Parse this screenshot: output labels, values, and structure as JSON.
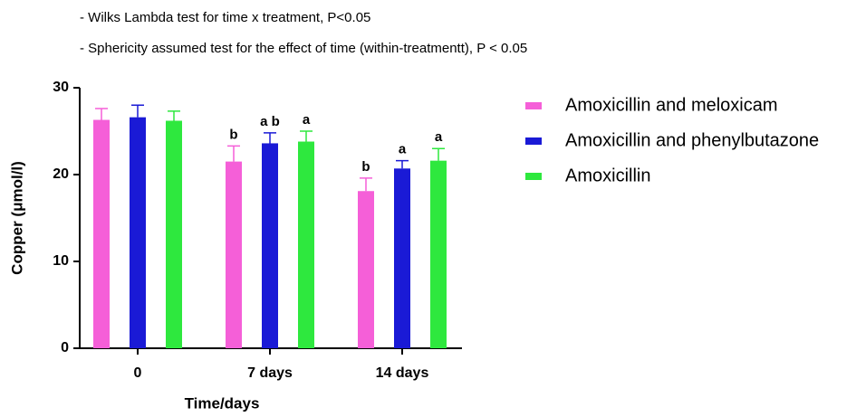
{
  "chart_data": {
    "type": "bar",
    "notes": [
      "- Wilks Lambda test for time x treatment, P<0.05",
      "- Sphericity assumed test for the effect of time (within-treatmentt), P < 0.05"
    ],
    "ylabel": "Copper (μmol/l)",
    "xlabel": "Time/days",
    "categories": [
      "0",
      "7 days",
      "14 days"
    ],
    "series": [
      {
        "name": "Amoxicillin and meloxicam",
        "color": "#f55fd8",
        "values": [
          26.3,
          21.5,
          18.1
        ],
        "errors": [
          1.3,
          1.8,
          1.5
        ],
        "annotations": [
          null,
          "b",
          "b"
        ]
      },
      {
        "name": "Amoxicillin and phenylbutazone",
        "color": "#1a1ad6",
        "values": [
          26.6,
          23.6,
          20.7
        ],
        "errors": [
          1.4,
          1.2,
          0.9
        ],
        "annotations": [
          null,
          "a b",
          "a"
        ]
      },
      {
        "name": "Amoxicillin",
        "color": "#2ee83e",
        "values": [
          26.2,
          23.8,
          21.6
        ],
        "errors": [
          1.1,
          1.2,
          1.4
        ],
        "annotations": [
          null,
          "a",
          "a"
        ]
      }
    ],
    "ylim": [
      0,
      30
    ],
    "yticks": [
      0,
      10,
      20,
      30
    ],
    "legend": "right"
  }
}
